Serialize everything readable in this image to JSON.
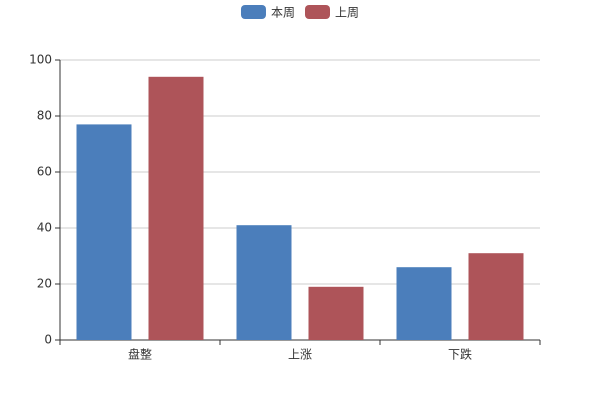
{
  "chart_data": {
    "type": "bar",
    "categories": [
      "盘整",
      "上涨",
      "下跌"
    ],
    "series": [
      {
        "name": "本周",
        "color": "#4b7ebb",
        "values": [
          77,
          41,
          26
        ]
      },
      {
        "name": "上周",
        "color": "#ae5459",
        "values": [
          94,
          19,
          31
        ]
      }
    ],
    "ylim": [
      0,
      100
    ],
    "yticks": [
      0,
      20,
      40,
      60,
      80,
      100
    ],
    "grid": true,
    "legend": "top"
  }
}
